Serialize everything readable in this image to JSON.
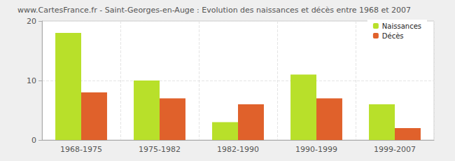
{
  "chart_data": {
    "type": "bar",
    "title": "www.CartesFrance.fr - Saint-Georges-en-Auge : Evolution des naissances et décès entre 1968 et 2007",
    "categories": [
      "1968-1975",
      "1975-1982",
      "1982-1990",
      "1990-1999",
      "1999-2007"
    ],
    "series": [
      {
        "name": "Naissances",
        "color": "#b8e02a",
        "values": [
          18,
          10,
          3,
          11,
          6
        ]
      },
      {
        "name": "Décès",
        "color": "#e0612b",
        "values": [
          8,
          7,
          6,
          7,
          2
        ]
      }
    ],
    "ylim": [
      0,
      20
    ],
    "yticks": [
      0,
      10,
      20
    ],
    "grid": true,
    "legend": "top-right"
  }
}
